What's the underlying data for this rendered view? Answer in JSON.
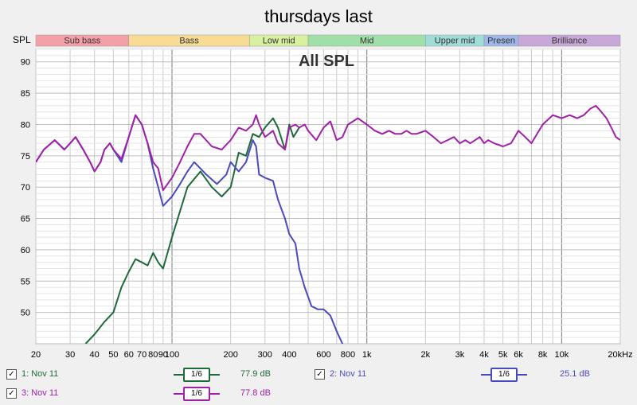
{
  "chart_data": {
    "type": "line",
    "title": "thursdays last",
    "subtitle": "All SPL",
    "ylabel": "SPL",
    "xscale": "log",
    "xlim": [
      20,
      20000
    ],
    "ylim": [
      45,
      92
    ],
    "grid": true,
    "xticks": [
      20,
      30,
      40,
      50,
      60,
      100,
      200,
      300,
      400,
      600,
      800,
      1000,
      2000,
      3000,
      4000,
      5000,
      6000,
      8000,
      10000,
      20000
    ],
    "xticklabels": [
      "20",
      "30",
      "40",
      "50",
      "60",
      "100",
      "200",
      "300",
      "400",
      "600",
      "800",
      "1k",
      "2k",
      "3k",
      "4k",
      "5k",
      "6k",
      "8k",
      "10k",
      "20kHz"
    ],
    "extra_xtick_positions": [
      70,
      80,
      90
    ],
    "extra_xticklabels": [
      "70",
      "80",
      "90"
    ],
    "yticks": [
      50,
      55,
      60,
      65,
      70,
      75,
      80,
      85,
      90
    ],
    "yticklabels": [
      "50",
      "55",
      "60",
      "65",
      "70",
      "75",
      "80",
      "85",
      "90"
    ],
    "bands": [
      {
        "label": "Sub bass",
        "from": 20,
        "to": 60,
        "color": "#f4a0a8"
      },
      {
        "label": "Bass",
        "from": 60,
        "to": 250,
        "color": "#f8dc94"
      },
      {
        "label": "Low mid",
        "from": 250,
        "to": 500,
        "color": "#d8f0a0"
      },
      {
        "label": "Mid",
        "from": 500,
        "to": 2000,
        "color": "#a0e0a8"
      },
      {
        "label": "Upper mid",
        "from": 2000,
        "to": 4000,
        "color": "#a0dcd8"
      },
      {
        "label": "Presen",
        "from": 4000,
        "to": 6000,
        "color": "#a0b8e8"
      },
      {
        "label": "Brilliance",
        "from": 6000,
        "to": 20000,
        "color": "#c8a8d8"
      }
    ],
    "series": [
      {
        "name": "1: Nov 11",
        "color": "#1e6a3a",
        "x": [
          36,
          40,
          45,
          50,
          55,
          60,
          65,
          70,
          75,
          80,
          85,
          90,
          100,
          120,
          140,
          160,
          180,
          200,
          220,
          240,
          260,
          280,
          300,
          330,
          350,
          380,
          400,
          420,
          450
        ],
        "y": [
          45,
          46.5,
          48.5,
          50,
          54,
          56.5,
          58.5,
          58,
          57.5,
          59.5,
          58,
          57,
          62,
          70,
          72.5,
          70,
          68.5,
          70,
          75.5,
          75,
          78.5,
          78,
          79.5,
          81,
          79.5,
          76,
          80,
          78,
          79.5
        ]
      },
      {
        "name": "2: Nov 11",
        "color": "#4a4ac0",
        "x": [
          20,
          22,
          25,
          28,
          30,
          32,
          35,
          38,
          40,
          43,
          45,
          48,
          50,
          55,
          60,
          65,
          70,
          75,
          80,
          85,
          90,
          100,
          110,
          120,
          130,
          150,
          170,
          190,
          200,
          220,
          240,
          260,
          270,
          280,
          300,
          330,
          350,
          380,
          400,
          430,
          450,
          480,
          520,
          560,
          600,
          650,
          700,
          750,
          800,
          850
        ],
        "y": [
          74,
          76,
          77.5,
          76,
          77,
          78,
          76,
          74,
          72.5,
          74,
          76,
          77,
          76,
          74,
          78,
          81.5,
          80,
          77,
          73,
          70,
          67,
          68.5,
          70.5,
          72.5,
          74,
          72,
          70.5,
          72,
          74,
          72.5,
          74,
          77.5,
          76.5,
          72,
          71.5,
          71,
          68,
          65,
          62.5,
          61,
          57,
          54,
          51,
          50.5,
          50.5,
          49.5,
          47,
          45,
          44,
          43
        ]
      },
      {
        "name": "3: Nov 11",
        "color": "#a020a8",
        "x": [
          20,
          22,
          25,
          28,
          30,
          32,
          35,
          38,
          40,
          43,
          45,
          48,
          50,
          55,
          60,
          65,
          70,
          75,
          80,
          85,
          90,
          100,
          110,
          120,
          130,
          140,
          160,
          180,
          200,
          220,
          240,
          260,
          270,
          280,
          300,
          330,
          350,
          380,
          400,
          430,
          450,
          480,
          500,
          550,
          600,
          650,
          700,
          750,
          800,
          900,
          1000,
          1100,
          1200,
          1300,
          1400,
          1500,
          1600,
          1700,
          1800,
          2000,
          2200,
          2400,
          2600,
          2800,
          3000,
          3200,
          3400,
          3600,
          3800,
          4000,
          4200,
          4500,
          5000,
          5500,
          6000,
          6500,
          7000,
          8000,
          9000,
          10000,
          11000,
          12000,
          13000,
          14000,
          15000,
          16000,
          17000,
          18000,
          19000,
          20000
        ],
        "y": [
          74,
          76,
          77.5,
          76,
          77,
          78,
          76,
          74,
          72.5,
          74,
          76,
          77,
          76,
          74.5,
          78,
          81.5,
          80,
          77,
          74,
          73,
          69.5,
          71.5,
          74,
          76.5,
          78.5,
          78.5,
          76.5,
          76,
          77.5,
          79.5,
          79,
          80,
          81.5,
          80,
          78,
          79,
          77,
          76,
          79.5,
          80,
          79.5,
          80,
          79,
          77.5,
          79.5,
          80.5,
          77.5,
          78,
          80,
          81,
          80,
          79,
          78.5,
          79,
          78.5,
          78.5,
          79,
          78.5,
          78.5,
          79,
          78,
          77,
          77.5,
          78,
          77,
          77.5,
          77,
          77.5,
          78,
          77,
          77.5,
          77,
          76.5,
          77,
          79,
          78,
          77,
          80,
          81.5,
          81,
          81.5,
          81,
          81.5,
          82.5,
          83,
          82,
          81,
          79.5,
          78,
          77.5
        ]
      }
    ]
  },
  "legend": {
    "items": [
      {
        "label": "1: Nov 11",
        "smoothing": "1/6",
        "value": "77.9 dB",
        "checked": "✓",
        "color": "#1e6a3a"
      },
      {
        "label": "2: Nov 11",
        "smoothing": "1/6",
        "value": "25.1 dB",
        "checked": "✓",
        "color": "#4a4ac0"
      },
      {
        "label": "3: Nov 11",
        "smoothing": "1/6",
        "value": "77.8 dB",
        "checked": "✓",
        "color": "#a020a8"
      }
    ]
  }
}
